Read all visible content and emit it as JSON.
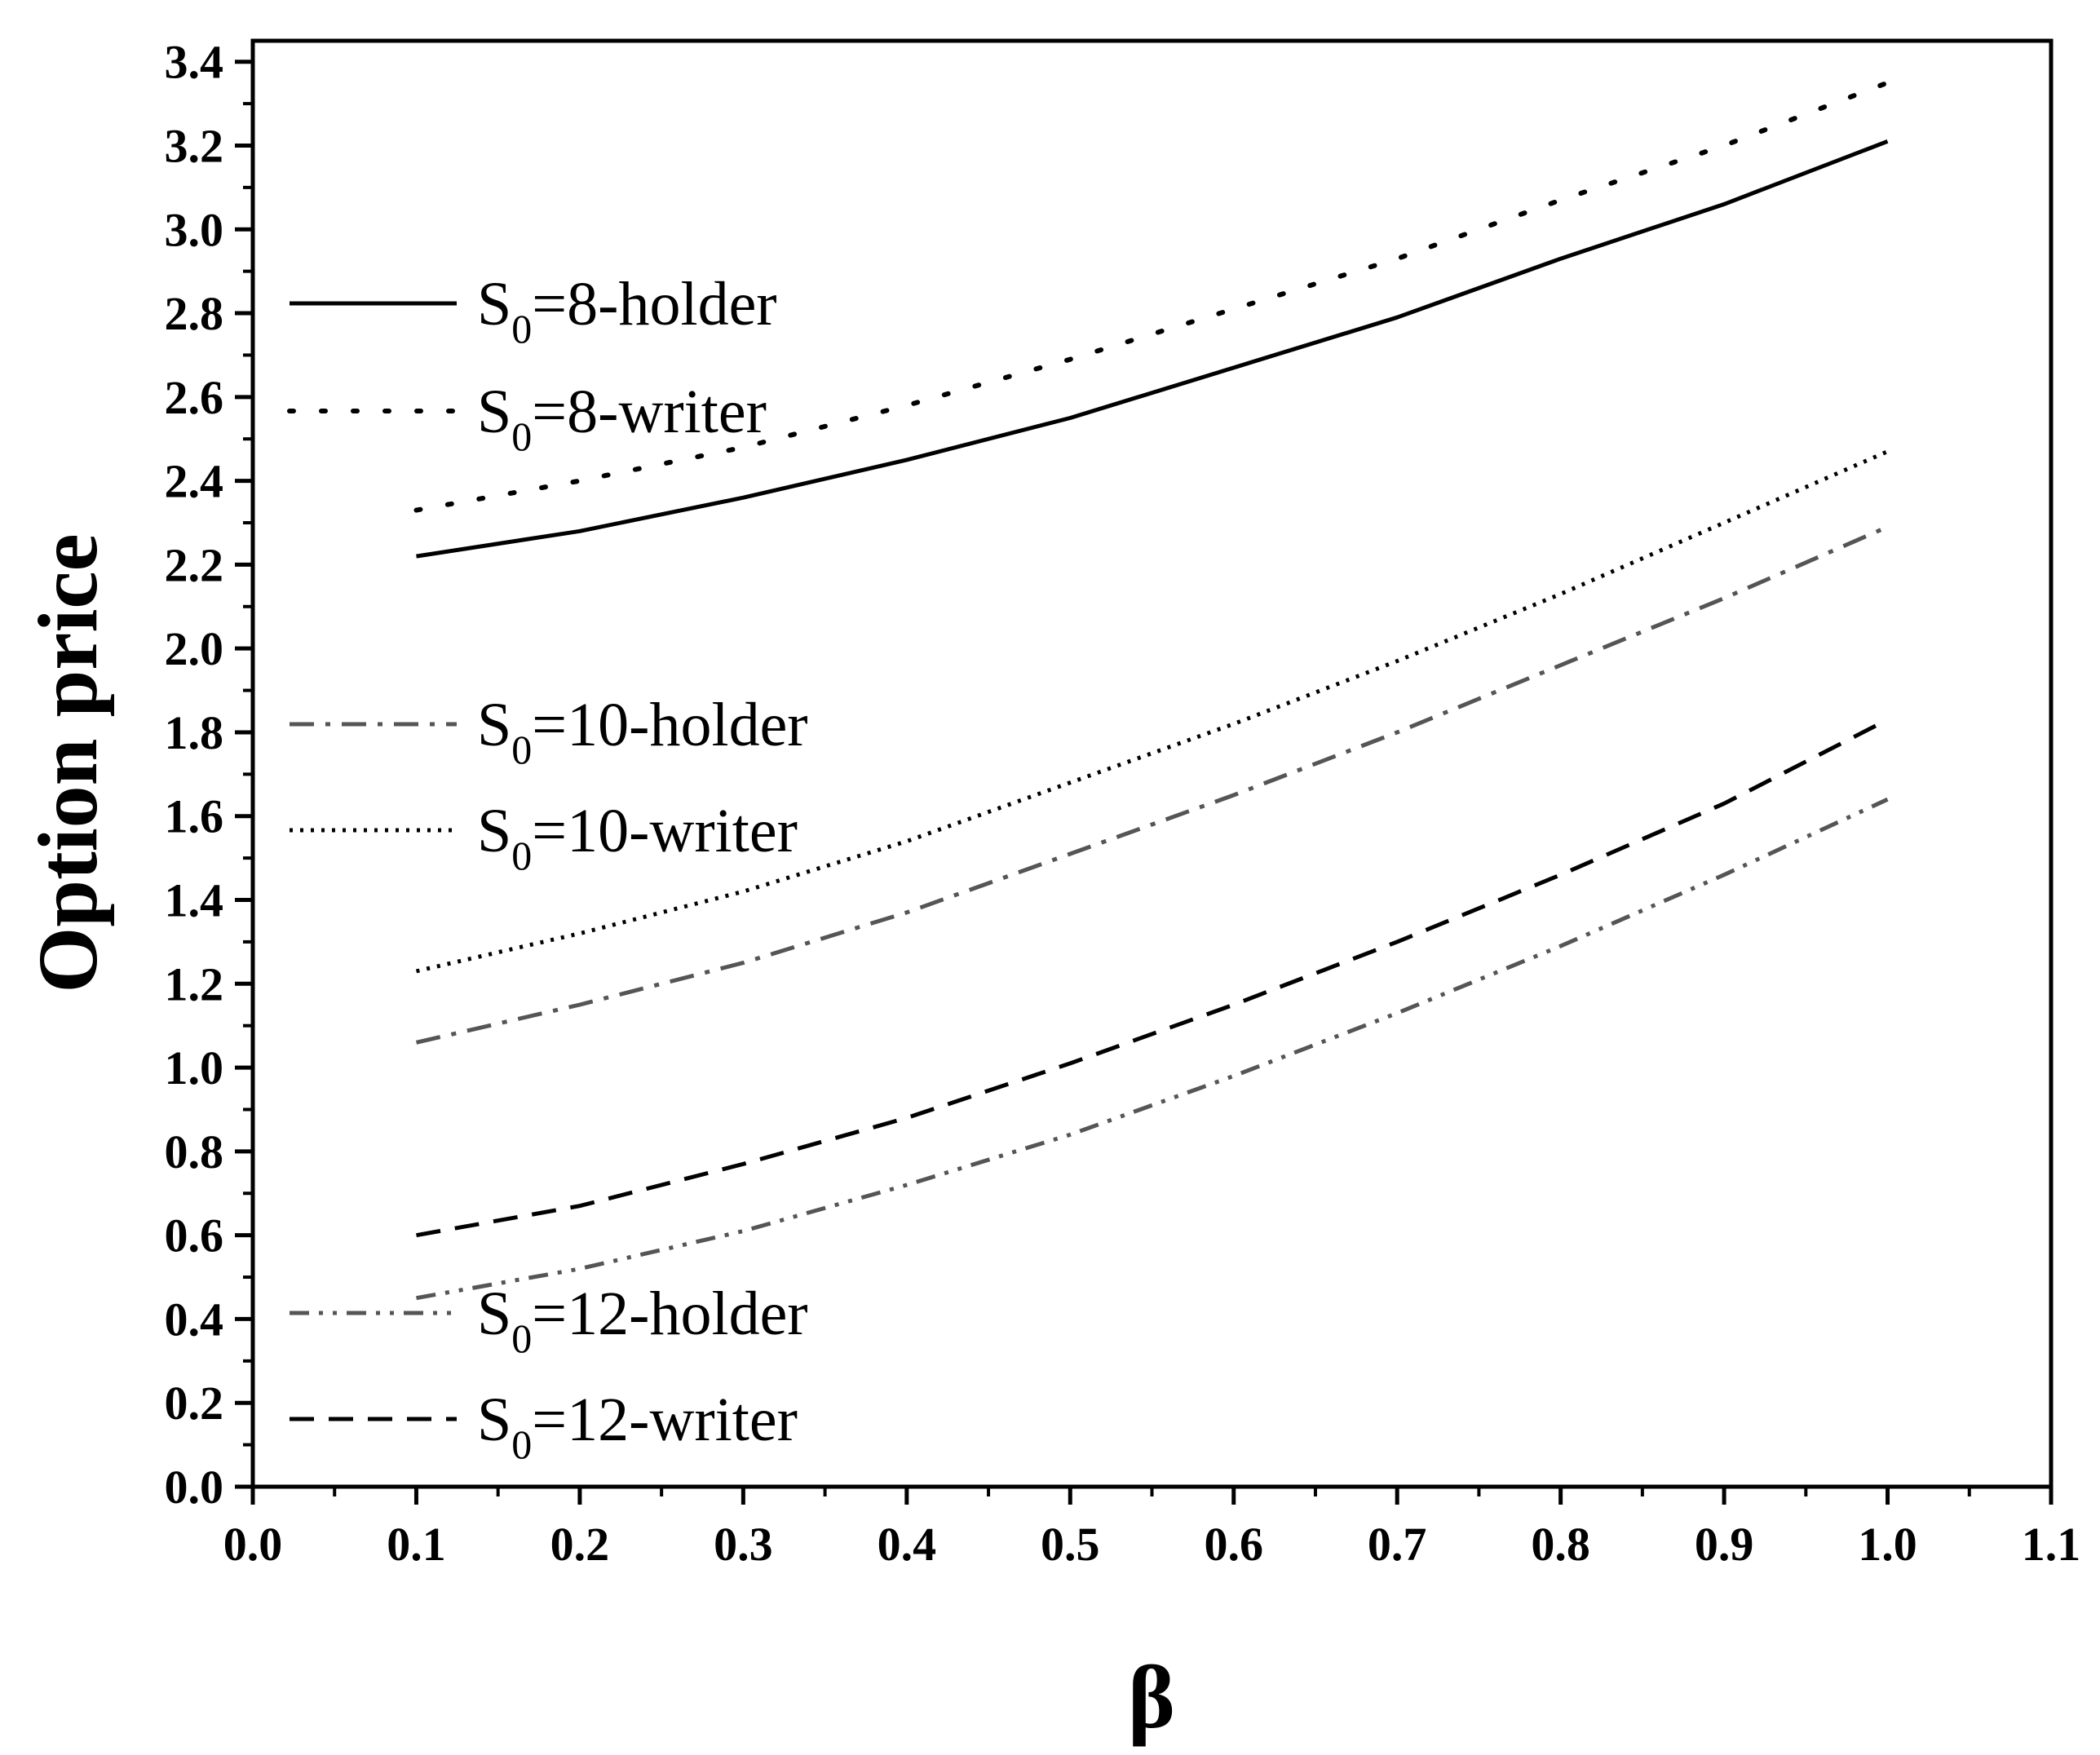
{
  "chart_data": {
    "type": "line",
    "title": "",
    "xlabel": "β",
    "ylabel": "Option price",
    "xlim": [
      0.0,
      1.1
    ],
    "ylim": [
      0.0,
      3.45
    ],
    "x_ticks": [
      "0.0",
      "0.1",
      "0.2",
      "0.3",
      "0.4",
      "0.5",
      "0.6",
      "0.7",
      "0.8",
      "0.9",
      "1.0",
      "1.1"
    ],
    "y_ticks": [
      "0.0",
      "0.2",
      "0.4",
      "0.6",
      "0.8",
      "1.0",
      "1.2",
      "1.4",
      "1.6",
      "1.8",
      "2.0",
      "2.2",
      "2.4",
      "2.6",
      "2.8",
      "3.0",
      "3.2",
      "3.4"
    ],
    "grid": false,
    "legend_placement": "left (inside plot)",
    "x": [
      0.1,
      0.2,
      0.3,
      0.4,
      0.5,
      0.6,
      0.7,
      0.8,
      0.9,
      1.0
    ],
    "series": [
      {
        "name": "S0=8-holder",
        "legend": {
          "main": "S",
          "sub": "0",
          "rest": "=8-holder"
        },
        "style": "solid",
        "color": "#000000",
        "values": [
          2.22,
          2.28,
          2.36,
          2.45,
          2.55,
          2.67,
          2.79,
          2.93,
          3.06,
          3.21
        ]
      },
      {
        "name": "S0=8-writer",
        "legend": {
          "main": "S",
          "sub": "0",
          "rest": "=8-writer"
        },
        "style": "dotted-sparse",
        "color": "#000000",
        "values": [
          2.33,
          2.4,
          2.48,
          2.58,
          2.69,
          2.81,
          2.93,
          3.07,
          3.2,
          3.35
        ]
      },
      {
        "name": "S0=10-holder",
        "legend": {
          "main": "S",
          "sub": "0",
          "rest": "=10-holder"
        },
        "style": "dash-dot",
        "color": "#555555",
        "values": [
          1.06,
          1.15,
          1.25,
          1.37,
          1.51,
          1.65,
          1.8,
          1.96,
          2.12,
          2.29
        ]
      },
      {
        "name": "S0=10-writer",
        "legend": {
          "main": "S",
          "sub": "0",
          "rest": "=10-writer"
        },
        "style": "dotted-dense",
        "color": "#000000",
        "values": [
          1.23,
          1.32,
          1.42,
          1.54,
          1.68,
          1.82,
          1.97,
          2.13,
          2.3,
          2.47
        ]
      },
      {
        "name": "S0=12-holder",
        "legend": {
          "main": "S",
          "sub": "0",
          "rest": "=12-holder"
        },
        "style": "dash-dot-dot",
        "color": "#555555",
        "values": [
          0.45,
          0.52,
          0.61,
          0.72,
          0.84,
          0.98,
          1.13,
          1.29,
          1.46,
          1.64
        ]
      },
      {
        "name": "S0=12-writer",
        "legend": {
          "main": "S",
          "sub": "0",
          "rest": "=12-writer"
        },
        "style": "dashed",
        "color": "#000000",
        "values": [
          0.6,
          0.67,
          0.77,
          0.88,
          1.01,
          1.15,
          1.3,
          1.46,
          1.63,
          1.83
        ]
      }
    ]
  }
}
